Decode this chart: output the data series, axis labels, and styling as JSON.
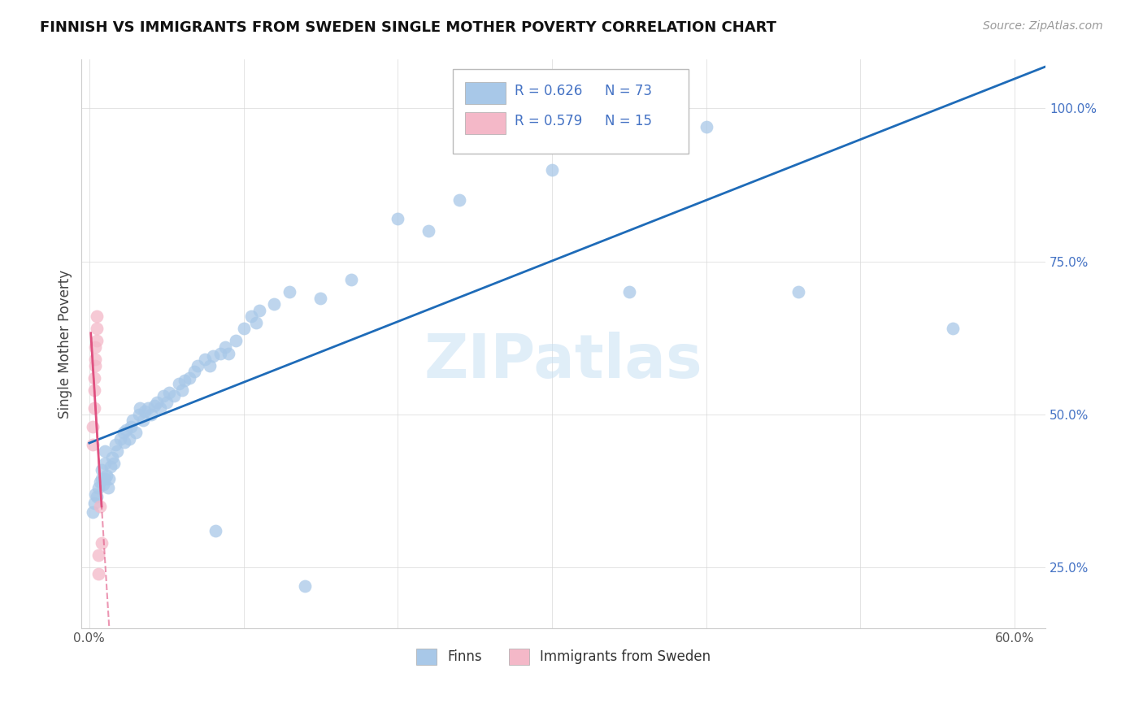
{
  "title": "FINNISH VS IMMIGRANTS FROM SWEDEN SINGLE MOTHER POVERTY CORRELATION CHART",
  "source": "Source: ZipAtlas.com",
  "ylabel": "Single Mother Poverty",
  "watermark": "ZIPatlas",
  "xlim": [
    -0.005,
    0.62
  ],
  "ylim": [
    0.15,
    1.08
  ],
  "xticks": [
    0.0,
    0.1,
    0.2,
    0.3,
    0.4,
    0.5,
    0.6
  ],
  "xtick_labels": [
    "0.0%",
    "",
    "",
    "",
    "",
    "",
    "60.0%"
  ],
  "ytick_vals": [
    0.25,
    0.5,
    0.75,
    1.0
  ],
  "ytick_labels": [
    "25.0%",
    "50.0%",
    "75.0%",
    "100.0%"
  ],
  "legend_r1": "R = 0.626",
  "legend_n1": "N = 73",
  "legend_r2": "R = 0.579",
  "legend_n2": "N = 15",
  "blue_color": "#a8c8e8",
  "pink_color": "#f4b8c8",
  "blue_line_color": "#1e6bb8",
  "pink_line_color": "#e05080",
  "blue_scatter": [
    [
      0.002,
      0.34
    ],
    [
      0.003,
      0.355
    ],
    [
      0.004,
      0.37
    ],
    [
      0.005,
      0.365
    ],
    [
      0.006,
      0.38
    ],
    [
      0.007,
      0.39
    ],
    [
      0.008,
      0.395
    ],
    [
      0.008,
      0.41
    ],
    [
      0.009,
      0.385
    ],
    [
      0.01,
      0.395
    ],
    [
      0.01,
      0.42
    ],
    [
      0.01,
      0.44
    ],
    [
      0.011,
      0.4
    ],
    [
      0.012,
      0.38
    ],
    [
      0.013,
      0.395
    ],
    [
      0.014,
      0.415
    ],
    [
      0.015,
      0.43
    ],
    [
      0.016,
      0.42
    ],
    [
      0.017,
      0.45
    ],
    [
      0.018,
      0.44
    ],
    [
      0.02,
      0.46
    ],
    [
      0.022,
      0.47
    ],
    [
      0.023,
      0.455
    ],
    [
      0.024,
      0.475
    ],
    [
      0.026,
      0.46
    ],
    [
      0.027,
      0.48
    ],
    [
      0.028,
      0.49
    ],
    [
      0.03,
      0.47
    ],
    [
      0.032,
      0.5
    ],
    [
      0.033,
      0.51
    ],
    [
      0.035,
      0.49
    ],
    [
      0.036,
      0.505
    ],
    [
      0.038,
      0.51
    ],
    [
      0.04,
      0.5
    ],
    [
      0.042,
      0.515
    ],
    [
      0.044,
      0.52
    ],
    [
      0.046,
      0.51
    ],
    [
      0.048,
      0.53
    ],
    [
      0.05,
      0.52
    ],
    [
      0.052,
      0.535
    ],
    [
      0.055,
      0.53
    ],
    [
      0.058,
      0.55
    ],
    [
      0.06,
      0.54
    ],
    [
      0.062,
      0.555
    ],
    [
      0.065,
      0.56
    ],
    [
      0.068,
      0.57
    ],
    [
      0.07,
      0.58
    ],
    [
      0.075,
      0.59
    ],
    [
      0.078,
      0.58
    ],
    [
      0.08,
      0.595
    ],
    [
      0.082,
      0.31
    ],
    [
      0.085,
      0.6
    ],
    [
      0.088,
      0.61
    ],
    [
      0.09,
      0.6
    ],
    [
      0.095,
      0.62
    ],
    [
      0.1,
      0.64
    ],
    [
      0.105,
      0.66
    ],
    [
      0.108,
      0.65
    ],
    [
      0.11,
      0.67
    ],
    [
      0.12,
      0.68
    ],
    [
      0.13,
      0.7
    ],
    [
      0.14,
      0.22
    ],
    [
      0.15,
      0.69
    ],
    [
      0.17,
      0.72
    ],
    [
      0.2,
      0.82
    ],
    [
      0.22,
      0.8
    ],
    [
      0.24,
      0.85
    ],
    [
      0.3,
      0.9
    ],
    [
      0.35,
      0.7
    ],
    [
      0.38,
      1.0
    ],
    [
      0.4,
      0.97
    ],
    [
      0.46,
      0.7
    ],
    [
      0.56,
      0.64
    ]
  ],
  "pink_scatter": [
    [
      0.002,
      0.45
    ],
    [
      0.002,
      0.48
    ],
    [
      0.003,
      0.51
    ],
    [
      0.003,
      0.54
    ],
    [
      0.003,
      0.56
    ],
    [
      0.004,
      0.58
    ],
    [
      0.004,
      0.59
    ],
    [
      0.004,
      0.61
    ],
    [
      0.005,
      0.62
    ],
    [
      0.005,
      0.64
    ],
    [
      0.005,
      0.66
    ],
    [
      0.006,
      0.24
    ],
    [
      0.006,
      0.27
    ],
    [
      0.007,
      0.35
    ],
    [
      0.008,
      0.29
    ]
  ]
}
